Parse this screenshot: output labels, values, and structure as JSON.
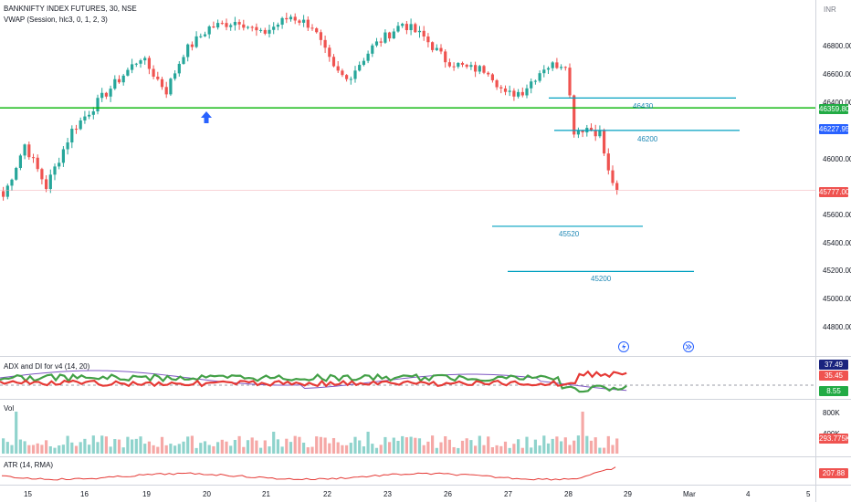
{
  "header": {
    "title": "BANKNIFTY INDEX FUTURES, 30, NSE",
    "vwap": "VWAP (Session, hlc3, 0, 1, 2, 3)",
    "currency": "INR"
  },
  "price_axis": {
    "ticks": [
      "46800.00",
      "46600.00",
      "46400.00",
      "46000.00",
      "45600.00",
      "45400.00",
      "45200.00",
      "45000.00",
      "44800.00"
    ],
    "badges": {
      "level_green": "46359.80",
      "vwap_blue": "46227.95",
      "last_red": "45777.00"
    }
  },
  "annotations": [
    "46430",
    "46200",
    "45520",
    "45200"
  ],
  "indicators": {
    "adx": {
      "label": "ADX and DI for v4 (14, 20)",
      "badges": [
        "37.49",
        "35.45",
        "8.55"
      ]
    },
    "vol": {
      "label": "Vol",
      "ticks": [
        "800K",
        "400K"
      ],
      "badge": "293.775K"
    },
    "atr": {
      "label": "ATR (14, RMA)",
      "badge": "207.88"
    }
  },
  "time_axis": {
    "ticks": [
      "15",
      "16",
      "19",
      "20",
      "21",
      "22",
      "23",
      "26",
      "27",
      "28",
      "29",
      "Mar",
      "4",
      "5"
    ]
  },
  "colors": {
    "up": "#26a69a",
    "down": "#ef5350",
    "level_line": "#00b300",
    "annotation": "#00a0c0",
    "arrow": "#2962ff"
  },
  "chart_data": {
    "type": "candlestick",
    "symbol": "BANKNIFTY INDEX FUTURES",
    "timeframe": "30",
    "exchange": "NSE",
    "horizontal_levels": [
      46430,
      46359.8,
      46200,
      45520,
      45200
    ],
    "last_price": 45777.0,
    "vwap_value": 46227.95,
    "ylim": [
      44700,
      47050
    ],
    "anchors": [
      {
        "x": 0,
        "close": 45730
      },
      {
        "x": 5,
        "close": 46100
      },
      {
        "x": 10,
        "close": 45800
      },
      {
        "x": 16,
        "close": 46200
      },
      {
        "x": 25,
        "close": 46500
      },
      {
        "x": 32,
        "close": 46720
      },
      {
        "x": 38,
        "close": 46480
      },
      {
        "x": 42,
        "close": 46750
      },
      {
        "x": 48,
        "close": 46930
      },
      {
        "x": 55,
        "close": 46980
      },
      {
        "x": 60,
        "close": 46880
      },
      {
        "x": 67,
        "close": 47010
      },
      {
        "x": 72,
        "close": 46940
      },
      {
        "x": 77,
        "close": 46630
      },
      {
        "x": 80,
        "close": 46560
      },
      {
        "x": 86,
        "close": 46790
      },
      {
        "x": 93,
        "close": 46960
      },
      {
        "x": 98,
        "close": 46860
      },
      {
        "x": 103,
        "close": 46700
      },
      {
        "x": 108,
        "close": 46640
      },
      {
        "x": 113,
        "close": 46630
      },
      {
        "x": 117,
        "close": 46450
      },
      {
        "x": 121,
        "close": 46480
      },
      {
        "x": 126,
        "close": 46650
      },
      {
        "x": 131,
        "close": 46680
      },
      {
        "x": 133,
        "close": 46200
      },
      {
        "x": 136,
        "close": 46220
      },
      {
        "x": 139,
        "close": 46180
      },
      {
        "x": 141,
        "close": 45900
      },
      {
        "x": 143,
        "close": 45777
      }
    ],
    "adx_series": [
      {
        "name": "ADX",
        "value": 37.49
      },
      {
        "name": "+DI",
        "value": 35.45
      },
      {
        "name": "-DI",
        "value": 8.55
      }
    ],
    "volume_last": 293775,
    "atr_last": 207.88
  }
}
